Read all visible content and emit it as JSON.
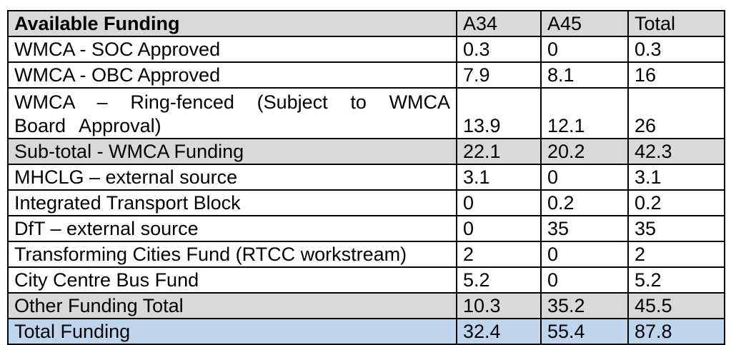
{
  "table": {
    "title": "Available Funding",
    "columns": [
      "A34",
      "A45",
      "Total"
    ],
    "colors": {
      "header_bg": "#d9d9d9",
      "subtotal_bg": "#d9d9d9",
      "total_bg": "#bdd6ee",
      "border_color": "#000000"
    },
    "rows": [
      {
        "label": "WMCA - SOC Approved",
        "a34": "0.3",
        "a45": "0",
        "total": "0.3"
      },
      {
        "label": "WMCA - OBC Approved",
        "a34": "7.9",
        "a45": "8.1",
        "total": "16"
      },
      {
        "label": "WMCA – Ring-fenced (Subject to WMCA Board Approval)",
        "a34": "13.9",
        "a45": "12.1",
        "total": "26"
      },
      {
        "label": "Sub-total - WMCA Funding",
        "a34": "22.1",
        "a45": "20.2",
        "total": "42.3"
      },
      {
        "label": "MHCLG – external source",
        "a34": "3.1",
        "a45": "0",
        "total": "3.1"
      },
      {
        "label": "Integrated Transport Block",
        "a34": "0",
        "a45": "0.2",
        "total": "0.2"
      },
      {
        "label": "DfT – external source",
        "a34": "0",
        "a45": "35",
        "total": "35"
      },
      {
        "label": "Transforming Cities Fund (RTCC workstream)",
        "a34": "2",
        "a45": "0",
        "total": "2"
      },
      {
        "label": "City Centre Bus Fund",
        "a34": "5.2",
        "a45": "0",
        "total": "5.2"
      },
      {
        "label": "Other Funding Total",
        "a34": "10.3",
        "a45": "35.2",
        "total": "45.5"
      },
      {
        "label": "Total Funding",
        "a34": "32.4",
        "a45": "55.4",
        "total": "87.8"
      }
    ]
  }
}
